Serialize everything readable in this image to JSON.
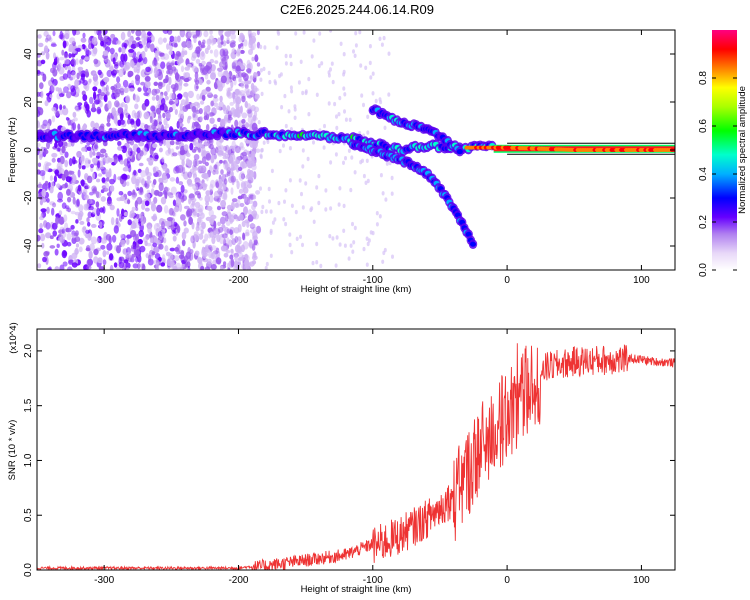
{
  "chart_data": [
    {
      "type": "heatmap",
      "title": "C2E6.2025.244.06.14.R09",
      "xlabel": "Height of straight line (km)",
      "ylabel": "Frequency (Hz)",
      "xlim": [
        -350,
        125
      ],
      "ylim": [
        -50,
        50
      ],
      "xticks": [
        -300,
        -200,
        -100,
        0,
        100
      ],
      "yticks": [
        -40,
        -20,
        0,
        20,
        40
      ],
      "colorbar": {
        "label": "Normalized spectral amplitude",
        "range": [
          0,
          1
        ],
        "ticks": [
          0.0,
          0.2,
          0.4,
          0.6,
          0.8
        ]
      },
      "features": {
        "noise_region_x": [
          -350,
          -185
        ],
        "main_trace": [
          [
            -350,
            6
          ],
          [
            -250,
            6
          ],
          [
            -200,
            7
          ],
          [
            -150,
            6
          ],
          [
            -120,
            5
          ],
          [
            -100,
            3
          ],
          [
            -80,
            0
          ],
          [
            -60,
            2
          ],
          [
            -45,
            1
          ],
          [
            -30,
            1
          ],
          [
            0,
            1
          ],
          [
            50,
            0
          ],
          [
            125,
            0
          ]
        ],
        "branch_trace": [
          [
            -110,
            2
          ],
          [
            -90,
            -2
          ],
          [
            -70,
            -6
          ],
          [
            -55,
            -12
          ],
          [
            -40,
            -24
          ],
          [
            -30,
            -34
          ],
          [
            -25,
            -40
          ]
        ],
        "upper_branch": [
          [
            -100,
            17
          ],
          [
            -90,
            14
          ],
          [
            -75,
            11
          ],
          [
            -60,
            9
          ],
          [
            -45,
            4
          ],
          [
            -35,
            0
          ]
        ]
      }
    },
    {
      "type": "line",
      "title": "",
      "xlabel": "Height of straight line (km)",
      "ylabel": "SNR (10 * v/v)",
      "y_multiplier": "(x10^4)",
      "xlim": [
        -350,
        125
      ],
      "ylim": [
        0,
        2.2
      ],
      "xticks": [
        -300,
        -200,
        -100,
        0,
        100
      ],
      "yticks": [
        0.0,
        0.5,
        1.0,
        1.5,
        2.0
      ],
      "series": [
        {
          "name": "SNR",
          "color": "#ee3333",
          "envelope": [
            [
              -350,
              0.02
            ],
            [
              -250,
              0.02
            ],
            [
              -200,
              0.02
            ],
            [
              -180,
              0.05
            ],
            [
              -150,
              0.1
            ],
            [
              -120,
              0.15
            ],
            [
              -100,
              0.25
            ],
            [
              -80,
              0.35
            ],
            [
              -60,
              0.5
            ],
            [
              -40,
              0.7
            ],
            [
              -30,
              0.95
            ],
            [
              -20,
              1.2
            ],
            [
              -10,
              1.35
            ],
            [
              0,
              1.5
            ],
            [
              10,
              1.65
            ],
            [
              20,
              1.8
            ],
            [
              30,
              1.88
            ],
            [
              50,
              1.93
            ],
            [
              80,
              1.95
            ],
            [
              100,
              1.93
            ],
            [
              110,
              1.91
            ],
            [
              125,
              1.9
            ]
          ]
        }
      ]
    }
  ]
}
